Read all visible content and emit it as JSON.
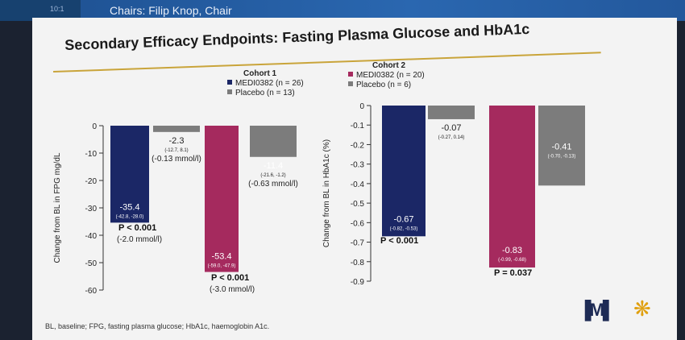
{
  "header": {
    "chairs": "Chairs: Filip Knop, Chair",
    "side_text": "10:1"
  },
  "title": "Secondary Efficacy Endpoints: Fasting Plasma Glucose and HbA1c",
  "footnote": "BL, baseline; FPG, fasting plasma glucose; HbA1c, haemoglobin A1c.",
  "colors": {
    "medi": "#1b2766",
    "medi2": "#a52a5e",
    "placebo": "#7c7c7c"
  },
  "chart_data": [
    {
      "type": "bar",
      "ylabel": "Change from BL in FPG mg/dL",
      "ylim": [
        -60,
        0
      ],
      "yticks": [
        "0",
        "-10",
        "-20",
        "-30",
        "-40",
        "-50",
        "-60"
      ],
      "legend_title": "Cohort 1",
      "legend": [
        "MEDI0382 (n = 26)",
        "Placebo (n = 13)"
      ],
      "bars": [
        {
          "value": -35.4,
          "label": "-35.4",
          "ci": "(-42.8, -28.0)",
          "series": "medi"
        },
        {
          "value": -2.3,
          "label": "-2.3",
          "ci": "(-12.7, 8.1)",
          "sub": "(-0.13 mmol/l)",
          "series": "placebo"
        },
        {
          "value": -53.4,
          "label": "-53.4",
          "ci": "(-59.0, -47.9)",
          "series": "medi2"
        },
        {
          "value": -11.4,
          "label": "-11.4",
          "ci": "(-21.6, -1.2)",
          "sub": "(-0.63 mmol/l)",
          "series": "placebo"
        }
      ],
      "pvalues": [
        {
          "p": "P < 0.001",
          "sub": "(-2.0 mmol/l)"
        },
        {
          "p": "P < 0.001",
          "sub": "(-3.0 mmol/l)"
        }
      ]
    },
    {
      "type": "bar",
      "ylabel": "Change from BL in HbA1c (%)",
      "ylim": [
        -0.9,
        0
      ],
      "yticks": [
        "0",
        "-0.1",
        "-0.2",
        "-0.3",
        "-0.4",
        "-0.5",
        "-0.6",
        "-0.7",
        "-0.8",
        "-0.9"
      ],
      "legend_title": "Cohort 2",
      "legend": [
        "MEDI0382 (n = 20)",
        "Placebo (n = 6)"
      ],
      "bars": [
        {
          "value": -0.67,
          "label": "-0.67",
          "ci": "(-0.82, -0.53)",
          "series": "medi"
        },
        {
          "value": -0.07,
          "label": "-0.07",
          "ci": "(-0.27, 0.14)",
          "series": "placebo"
        },
        {
          "value": -0.83,
          "label": "-0.83",
          "ci": "(-0.99, -0.68)",
          "series": "medi2"
        },
        {
          "value": -0.41,
          "label": "-0.41",
          "ci": "(-0.70, -0.13)",
          "series": "placebo"
        }
      ],
      "pvalues": [
        {
          "p": "P < 0.001",
          "sub": ""
        },
        {
          "p": "P = 0.037",
          "sub": ""
        }
      ]
    }
  ]
}
